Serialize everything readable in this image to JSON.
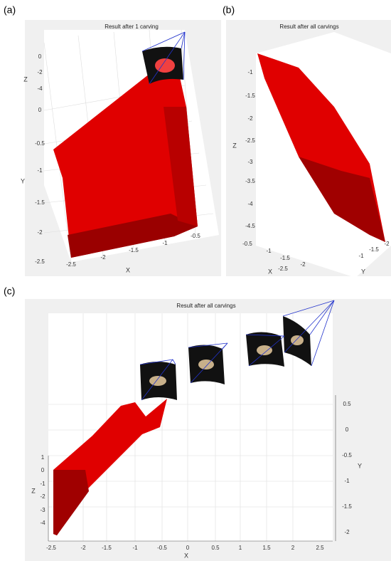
{
  "panels": [
    {
      "label": "(a)",
      "title": "Result after 1 carving",
      "z": {
        "label": "Z",
        "ticks": [
          "0",
          "-2",
          "-4"
        ]
      },
      "y": {
        "label": "Y",
        "ticks": [
          "0",
          "-0.5",
          "-1",
          "-1.5",
          "-2",
          "-2.5"
        ]
      },
      "x": {
        "label": "X",
        "ticks": [
          "-2.5",
          "-2",
          "-1.5",
          "-1",
          "-0.5"
        ]
      }
    },
    {
      "label": "(b)",
      "title": "Result after all carvings",
      "z": {
        "label": "Z",
        "ticks": [
          "-1",
          "-1.5",
          "-2",
          "-2.5",
          "-3",
          "-3.5",
          "-4",
          "-4.5"
        ]
      },
      "x": {
        "label": "X",
        "ticks": [
          "-0.5",
          "-1",
          "-1.5",
          "-2",
          "-2.5"
        ]
      },
      "y": {
        "label": "Y",
        "ticks": [
          "-1",
          "-1.5",
          "-2"
        ]
      }
    },
    {
      "label": "(c)",
      "title": "Result after all carvings",
      "z": {
        "label": "Z",
        "ticks": [
          "1",
          "0",
          "-1",
          "-2",
          "-3",
          "-4"
        ]
      },
      "y": {
        "label": "Y",
        "ticks": [
          "0.5",
          "0",
          "-0.5",
          "-1",
          "-1.5",
          "-2"
        ]
      },
      "x": {
        "label": "X",
        "ticks": [
          "-2.5",
          "-2",
          "-1.5",
          "-1",
          "-0.5",
          "0",
          "0.5",
          "1",
          "1.5",
          "2",
          "2.5"
        ]
      }
    }
  ]
}
